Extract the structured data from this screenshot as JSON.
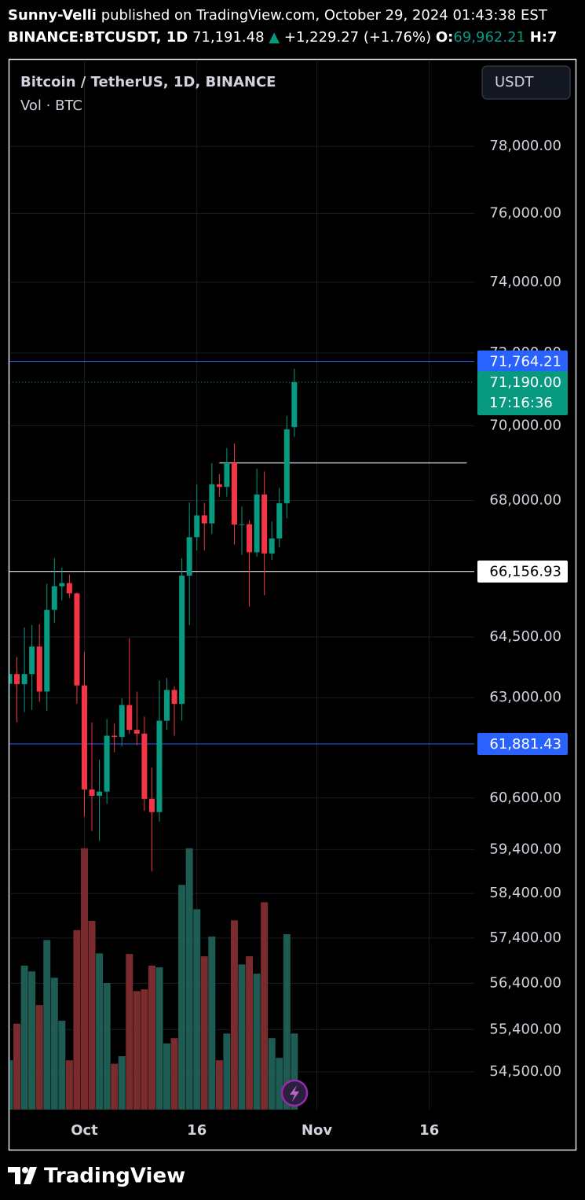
{
  "header": {
    "author": "Sunny-Velli",
    "published": "published on TradingView.com, October 29, 2024 01:43:38 EST",
    "symbol": "BINANCE:BTCUSDT, 1D",
    "price": "71,191.48",
    "arrow": "▲",
    "change": "+1,229.27 (+1.76%)",
    "open_label": "O:",
    "open_value": "69,962.21",
    "high_label": "H:7"
  },
  "chart_data": {
    "type": "candlestick",
    "title": "Bitcoin / TetherUS, 1D, BINANCE",
    "volume_label": "Vol · BTC",
    "currency": "USDT",
    "x": [
      "2024-09-21",
      "2024-09-22",
      "2024-09-23",
      "2024-09-24",
      "2024-09-25",
      "2024-09-26",
      "2024-09-27",
      "2024-09-28",
      "2024-09-29",
      "2024-09-30",
      "2024-10-01",
      "2024-10-02",
      "2024-10-03",
      "2024-10-04",
      "2024-10-05",
      "2024-10-06",
      "2024-10-07",
      "2024-10-08",
      "2024-10-09",
      "2024-10-10",
      "2024-10-11",
      "2024-10-12",
      "2024-10-13",
      "2024-10-14",
      "2024-10-15",
      "2024-10-16",
      "2024-10-17",
      "2024-10-18",
      "2024-10-19",
      "2024-10-20",
      "2024-10-21",
      "2024-10-22",
      "2024-10-23",
      "2024-10-24",
      "2024-10-25",
      "2024-10-26",
      "2024-10-27",
      "2024-10-28",
      "2024-10-29"
    ],
    "open": [
      63340,
      63580,
      63330,
      63580,
      64260,
      63150,
      65180,
      65780,
      65860,
      65600,
      63300,
      60800,
      60650,
      60750,
      62080,
      62050,
      62820,
      62220,
      62130,
      60580,
      60270,
      62440,
      63190,
      62850,
      66050,
      67040,
      67610,
      67400,
      68430,
      68360,
      69000,
      67370,
      67380,
      66650,
      68160,
      66620,
      67010,
      67930,
      69962
    ],
    "high": [
      63800,
      64000,
      64740,
      64800,
      64820,
      65840,
      66500,
      66260,
      66080,
      65620,
      64130,
      62400,
      61500,
      62480,
      62370,
      62980,
      64470,
      63150,
      62540,
      61320,
      63420,
      63480,
      63280,
      66500,
      67950,
      68420,
      67940,
      68990,
      68700,
      69400,
      69520,
      67840,
      67480,
      68840,
      68770,
      67450,
      68330,
      70270,
      71560
    ],
    "low": [
      62820,
      62400,
      62650,
      62700,
      62900,
      62680,
      64850,
      65420,
      65480,
      62850,
      60160,
      59830,
      59600,
      60460,
      61680,
      61820,
      62120,
      61850,
      60300,
      58900,
      60050,
      62220,
      62080,
      62440,
      64800,
      66700,
      66700,
      67120,
      68100,
      68100,
      66850,
      66580,
      65260,
      66540,
      65550,
      66450,
      66780,
      67530,
      69700
    ],
    "close": [
      63580,
      63330,
      63580,
      64260,
      63150,
      65180,
      65780,
      65860,
      65600,
      63300,
      60800,
      60650,
      60750,
      62080,
      62050,
      62820,
      62220,
      62130,
      60580,
      60270,
      62440,
      63190,
      62850,
      66050,
      67040,
      67610,
      67400,
      68430,
      68360,
      69000,
      67370,
      67380,
      66650,
      68160,
      66620,
      67010,
      67930,
      69900,
      71190
    ],
    "volume": [
      8500,
      14800,
      24800,
      23800,
      18000,
      29200,
      22700,
      15300,
      8500,
      30900,
      45000,
      32500,
      26900,
      21800,
      7900,
      9200,
      26800,
      20400,
      20700,
      24800,
      24500,
      11400,
      12300,
      38700,
      45000,
      34500,
      26400,
      29800,
      8500,
      13100,
      32600,
      25000,
      26400,
      23400,
      35700,
      12300,
      8900,
      30200,
      13100
    ],
    "up_color": "#089981",
    "down_color": "#f23645",
    "up_volume_color": "#1e5b53",
    "down_volume_color": "#7a2b2d",
    "xlim": [
      "2024-09-21",
      "2024-11-22"
    ],
    "xticks": [
      {
        "value": "2024-10-01",
        "label": "Oct"
      },
      {
        "value": "2024-10-16",
        "label": "16"
      },
      {
        "value": "2024-11-01",
        "label": "Nov"
      },
      {
        "value": "2024-11-16",
        "label": "16"
      }
    ],
    "ylim": [
      53710,
      80660
    ],
    "log_scale": true,
    "grid": true,
    "yticks": [
      {
        "value": 78000,
        "label": "78,000.00"
      },
      {
        "value": 76000,
        "label": "76,000.00"
      },
      {
        "value": 74000,
        "label": "74,000.00"
      },
      {
        "value": 72000,
        "label": "72,000.00"
      },
      {
        "value": 70000,
        "label": "70,000.00"
      },
      {
        "value": 68000,
        "label": "68,000.00"
      },
      {
        "value": 64500,
        "label": "64,500.00"
      },
      {
        "value": 63000,
        "label": "63,000.00"
      },
      {
        "value": 60600,
        "label": "60,600.00"
      },
      {
        "value": 59400,
        "label": "59,400.00"
      },
      {
        "value": 58400,
        "label": "58,400.00"
      },
      {
        "value": 57400,
        "label": "57,400.00"
      },
      {
        "value": 56400,
        "label": "56,400.00"
      },
      {
        "value": 55400,
        "label": "55,400.00"
      },
      {
        "value": 54500,
        "label": "54,500.00"
      }
    ],
    "vlim": [
      0,
      60000
    ],
    "price_lines": [
      {
        "value": 71764.21,
        "label": "71,764.21",
        "color": "#2962ff"
      },
      {
        "value": 66156.93,
        "label": "66,156.93",
        "color": "#ffffff"
      },
      {
        "value": 61881.43,
        "label": "61,881.43",
        "color": "#2962ff"
      }
    ],
    "current_price": {
      "value": 71190,
      "label": "71,190.00",
      "countdown": "17:16:36"
    },
    "drawings": [
      {
        "value": 69000,
        "from": "2024-10-19",
        "to": "2024-11-21",
        "color": "#b2b5be"
      }
    ]
  },
  "footer": {
    "brand": "TradingView"
  }
}
